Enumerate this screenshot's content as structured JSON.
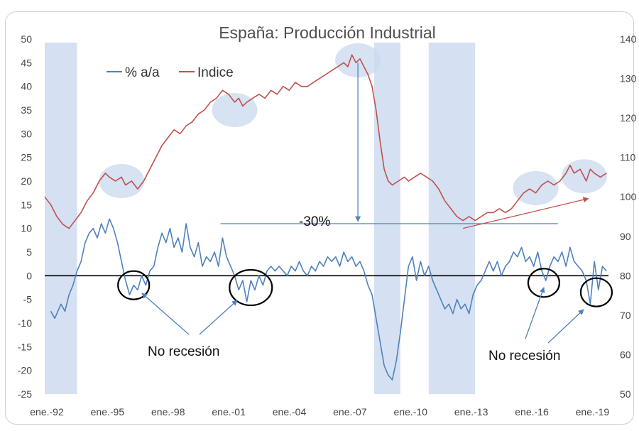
{
  "chart_data": {
    "type": "line",
    "title": "España: Producción Industrial",
    "x_tick_labels": [
      "ene.-92",
      "ene.-95",
      "ene.-98",
      "ene.-01",
      "ene.-04",
      "ene.-07",
      "ene.-10",
      "ene.-13",
      "ene.-16",
      "ene.-19"
    ],
    "x_range": [
      1992.0,
      2019.9
    ],
    "y_left": {
      "min": -25,
      "max": 50,
      "step": 5
    },
    "y_right": {
      "min": 50,
      "max": 140,
      "step": 10
    },
    "legend_position": "top-left",
    "grid": false,
    "recession_bands": [
      [
        1992.0,
        1993.6
      ],
      [
        2008.3,
        2009.6
      ],
      [
        2011.0,
        2013.3
      ]
    ],
    "series": [
      {
        "name": "% a/a",
        "axis": "left",
        "color": "#4f81bd",
        "points": [
          [
            1992.3,
            -7.5
          ],
          [
            1992.5,
            -9
          ],
          [
            1992.8,
            -6
          ],
          [
            1993.0,
            -7.5
          ],
          [
            1993.2,
            -4
          ],
          [
            1993.4,
            -2
          ],
          [
            1993.6,
            1
          ],
          [
            1993.8,
            3
          ],
          [
            1994.0,
            7
          ],
          [
            1994.2,
            9
          ],
          [
            1994.4,
            10
          ],
          [
            1994.6,
            8
          ],
          [
            1994.8,
            11
          ],
          [
            1995.0,
            9
          ],
          [
            1995.2,
            12
          ],
          [
            1995.4,
            10
          ],
          [
            1995.6,
            7
          ],
          [
            1995.8,
            3
          ],
          [
            1996.0,
            -1
          ],
          [
            1996.2,
            -4
          ],
          [
            1996.4,
            -2
          ],
          [
            1996.6,
            -3
          ],
          [
            1996.8,
            0
          ],
          [
            1997.0,
            -2
          ],
          [
            1997.2,
            1
          ],
          [
            1997.4,
            2
          ],
          [
            1997.6,
            6
          ],
          [
            1997.8,
            9
          ],
          [
            1998.0,
            7
          ],
          [
            1998.2,
            10
          ],
          [
            1998.4,
            6
          ],
          [
            1998.6,
            8
          ],
          [
            1998.8,
            5
          ],
          [
            1999.0,
            11
          ],
          [
            1999.2,
            6
          ],
          [
            1999.4,
            4
          ],
          [
            1999.6,
            7
          ],
          [
            1999.8,
            2
          ],
          [
            2000.0,
            4
          ],
          [
            2000.2,
            3
          ],
          [
            2000.4,
            5
          ],
          [
            2000.6,
            2
          ],
          [
            2000.8,
            8
          ],
          [
            2001.0,
            4
          ],
          [
            2001.2,
            2
          ],
          [
            2001.4,
            0
          ],
          [
            2001.6,
            -3
          ],
          [
            2001.8,
            -1
          ],
          [
            2002.0,
            -5.5
          ],
          [
            2002.2,
            -1
          ],
          [
            2002.4,
            -3
          ],
          [
            2002.6,
            0
          ],
          [
            2002.8,
            -2
          ],
          [
            2003.0,
            1
          ],
          [
            2003.2,
            2
          ],
          [
            2003.4,
            1
          ],
          [
            2003.6,
            2
          ],
          [
            2003.8,
            1
          ],
          [
            2004.0,
            0
          ],
          [
            2004.2,
            2
          ],
          [
            2004.4,
            1
          ],
          [
            2004.6,
            3
          ],
          [
            2004.8,
            1
          ],
          [
            2005.0,
            0
          ],
          [
            2005.2,
            2
          ],
          [
            2005.4,
            1
          ],
          [
            2005.6,
            3
          ],
          [
            2005.8,
            2
          ],
          [
            2006.0,
            4
          ],
          [
            2006.2,
            3
          ],
          [
            2006.4,
            4
          ],
          [
            2006.6,
            2
          ],
          [
            2006.8,
            5
          ],
          [
            2007.0,
            3
          ],
          [
            2007.2,
            4
          ],
          [
            2007.4,
            2
          ],
          [
            2007.6,
            3
          ],
          [
            2007.8,
            1
          ],
          [
            2008.0,
            -2
          ],
          [
            2008.2,
            -4
          ],
          [
            2008.4,
            -9
          ],
          [
            2008.6,
            -14
          ],
          [
            2008.8,
            -19
          ],
          [
            2009.0,
            -21
          ],
          [
            2009.2,
            -22
          ],
          [
            2009.4,
            -18
          ],
          [
            2009.6,
            -12
          ],
          [
            2009.8,
            -5
          ],
          [
            2010.0,
            2
          ],
          [
            2010.2,
            4
          ],
          [
            2010.4,
            -1
          ],
          [
            2010.6,
            3
          ],
          [
            2010.8,
            0
          ],
          [
            2011.0,
            2
          ],
          [
            2011.2,
            -1
          ],
          [
            2011.4,
            -3
          ],
          [
            2011.6,
            -5
          ],
          [
            2011.8,
            -7
          ],
          [
            2012.0,
            -6
          ],
          [
            2012.2,
            -8
          ],
          [
            2012.4,
            -5
          ],
          [
            2012.6,
            -7
          ],
          [
            2012.8,
            -6
          ],
          [
            2013.0,
            -8
          ],
          [
            2013.2,
            -4
          ],
          [
            2013.4,
            -2
          ],
          [
            2013.6,
            -1
          ],
          [
            2013.8,
            1
          ],
          [
            2014.0,
            3
          ],
          [
            2014.2,
            1
          ],
          [
            2014.4,
            3
          ],
          [
            2014.6,
            0
          ],
          [
            2014.8,
            2
          ],
          [
            2015.0,
            3
          ],
          [
            2015.2,
            5
          ],
          [
            2015.4,
            4
          ],
          [
            2015.6,
            6
          ],
          [
            2015.8,
            3
          ],
          [
            2016.0,
            4
          ],
          [
            2016.2,
            2
          ],
          [
            2016.4,
            5
          ],
          [
            2016.6,
            1
          ],
          [
            2016.8,
            -1
          ],
          [
            2017.0,
            2
          ],
          [
            2017.2,
            4
          ],
          [
            2017.4,
            3
          ],
          [
            2017.6,
            5
          ],
          [
            2017.8,
            2
          ],
          [
            2018.0,
            6
          ],
          [
            2018.2,
            3
          ],
          [
            2018.4,
            2
          ],
          [
            2018.6,
            1
          ],
          [
            2018.8,
            -1
          ],
          [
            2019.0,
            -6
          ],
          [
            2019.2,
            3
          ],
          [
            2019.4,
            -3
          ],
          [
            2019.6,
            2
          ],
          [
            2019.8,
            1
          ]
        ]
      },
      {
        "name": "Indice",
        "axis": "right",
        "color": "#c0504d",
        "points": [
          [
            1992.0,
            100
          ],
          [
            1992.3,
            98
          ],
          [
            1992.6,
            95
          ],
          [
            1992.9,
            93
          ],
          [
            1993.2,
            92
          ],
          [
            1993.5,
            94
          ],
          [
            1993.8,
            96
          ],
          [
            1994.1,
            99
          ],
          [
            1994.4,
            101
          ],
          [
            1994.7,
            104
          ],
          [
            1995.0,
            106
          ],
          [
            1995.2,
            105
          ],
          [
            1995.5,
            104
          ],
          [
            1995.8,
            105
          ],
          [
            1996.0,
            103
          ],
          [
            1996.3,
            104
          ],
          [
            1996.6,
            102
          ],
          [
            1996.9,
            104
          ],
          [
            1997.2,
            107
          ],
          [
            1997.5,
            110
          ],
          [
            1997.8,
            113
          ],
          [
            1998.1,
            115
          ],
          [
            1998.4,
            117
          ],
          [
            1998.7,
            116
          ],
          [
            1999.0,
            118
          ],
          [
            1999.3,
            119
          ],
          [
            1999.6,
            121
          ],
          [
            1999.9,
            122
          ],
          [
            2000.2,
            124
          ],
          [
            2000.5,
            125
          ],
          [
            2000.8,
            127
          ],
          [
            2001.1,
            126
          ],
          [
            2001.4,
            124
          ],
          [
            2001.6,
            125
          ],
          [
            2001.8,
            123
          ],
          [
            2002.0,
            124
          ],
          [
            2002.3,
            125
          ],
          [
            2002.6,
            126
          ],
          [
            2002.9,
            125
          ],
          [
            2003.2,
            127
          ],
          [
            2003.5,
            126
          ],
          [
            2003.8,
            128
          ],
          [
            2004.1,
            127
          ],
          [
            2004.4,
            129
          ],
          [
            2004.7,
            128
          ],
          [
            2005.0,
            128
          ],
          [
            2005.3,
            129
          ],
          [
            2005.6,
            130
          ],
          [
            2005.9,
            131
          ],
          [
            2006.2,
            132
          ],
          [
            2006.5,
            133
          ],
          [
            2006.8,
            134
          ],
          [
            2007.0,
            133
          ],
          [
            2007.2,
            136
          ],
          [
            2007.4,
            134
          ],
          [
            2007.6,
            135
          ],
          [
            2007.8,
            133
          ],
          [
            2008.0,
            131
          ],
          [
            2008.2,
            128
          ],
          [
            2008.4,
            122
          ],
          [
            2008.6,
            114
          ],
          [
            2008.8,
            107
          ],
          [
            2009.0,
            104
          ],
          [
            2009.2,
            103
          ],
          [
            2009.5,
            104
          ],
          [
            2009.8,
            105
          ],
          [
            2010.0,
            104
          ],
          [
            2010.3,
            105
          ],
          [
            2010.6,
            106
          ],
          [
            2010.9,
            105
          ],
          [
            2011.2,
            104
          ],
          [
            2011.5,
            102
          ],
          [
            2011.8,
            99
          ],
          [
            2012.1,
            97
          ],
          [
            2012.4,
            95
          ],
          [
            2012.7,
            94
          ],
          [
            2013.0,
            95
          ],
          [
            2013.3,
            94
          ],
          [
            2013.6,
            95
          ],
          [
            2013.9,
            96
          ],
          [
            2014.2,
            96
          ],
          [
            2014.5,
            97
          ],
          [
            2014.8,
            96
          ],
          [
            2015.1,
            97
          ],
          [
            2015.4,
            99
          ],
          [
            2015.7,
            101
          ],
          [
            2016.0,
            102
          ],
          [
            2016.3,
            101
          ],
          [
            2016.6,
            103
          ],
          [
            2016.9,
            104
          ],
          [
            2017.2,
            103
          ],
          [
            2017.5,
            104
          ],
          [
            2017.8,
            106
          ],
          [
            2018.0,
            108
          ],
          [
            2018.2,
            106
          ],
          [
            2018.5,
            107
          ],
          [
            2018.8,
            104
          ],
          [
            2019.0,
            107
          ],
          [
            2019.2,
            106
          ],
          [
            2019.5,
            105
          ],
          [
            2019.8,
            106
          ]
        ]
      }
    ],
    "annotations": [
      {
        "text": "-30%",
        "data_x": 1999.9,
        "data_y_left": 11
      },
      {
        "text": "No recesión",
        "data_x": 2001.2,
        "data_y_left": -16
      },
      {
        "text": "No recesión",
        "data_x": 2016.5,
        "data_y_left": -16.5
      }
    ],
    "highlight_circles": [
      {
        "cx": 1995.8,
        "cy_left": 20,
        "color": "blue"
      },
      {
        "cx": 2001.4,
        "cy_left": 35,
        "color": "blue"
      },
      {
        "cx": 2007.5,
        "cy_left": 45.5,
        "color": "blue"
      },
      {
        "cx": 2016.3,
        "cy_left": 18.5,
        "color": "blue"
      },
      {
        "cx": 2018.7,
        "cy_left": 21,
        "color": "blue"
      },
      {
        "cx": 1996.4,
        "cy_left": -2,
        "color": "black"
      },
      {
        "cx": 2002.2,
        "cy_left": -2.5,
        "color": "black"
      },
      {
        "cx": 2016.7,
        "cy_left": -1.5,
        "color": "black"
      },
      {
        "cx": 2019.3,
        "cy_left": -3.5,
        "color": "black"
      }
    ]
  }
}
